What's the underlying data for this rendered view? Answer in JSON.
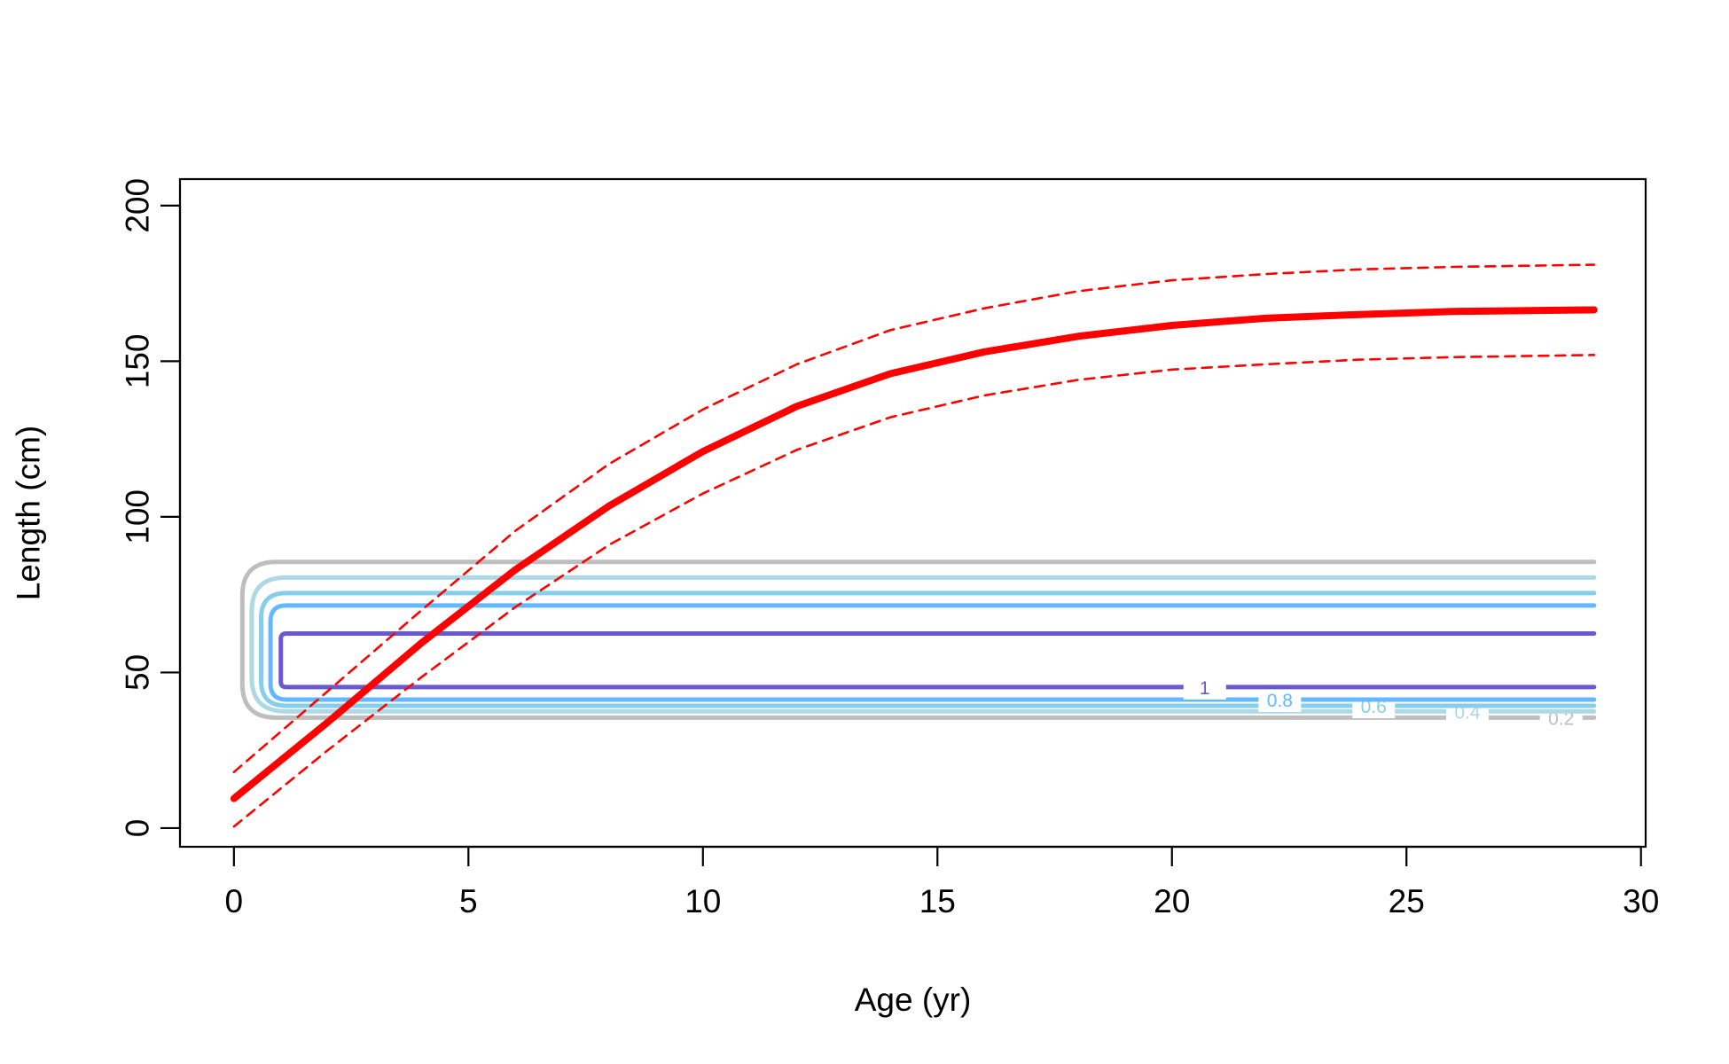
{
  "chart_data": {
    "type": "line",
    "title": "",
    "xlabel": "Age (yr)",
    "ylabel": "Length (cm)",
    "xlim": [
      -1.15,
      30.1
    ],
    "ylim": [
      -6,
      208.5
    ],
    "x_ticks": [
      0,
      5,
      10,
      15,
      20,
      25,
      30
    ],
    "x_tick_labels": [
      "0",
      "5",
      "10",
      "15",
      "20",
      "25",
      "30"
    ],
    "y_ticks": [
      0,
      50,
      100,
      150,
      200
    ],
    "y_tick_labels": [
      "0",
      "50",
      "100",
      "150",
      "200"
    ],
    "grid": false,
    "legend": "none",
    "colors": {
      "mean": "#ff0000",
      "interval": "#ff0000",
      "axis": "#000000"
    },
    "series": [
      {
        "role": "mean",
        "style": "solid-thick",
        "x": [
          0,
          2,
          4,
          6,
          8,
          10,
          12,
          14,
          16,
          18,
          20,
          22,
          24,
          26,
          29
        ],
        "y": [
          9.5,
          34,
          59.5,
          83,
          103.5,
          121,
          135.5,
          146,
          153,
          158,
          161.5,
          163.8,
          165,
          166,
          166.5
        ]
      },
      {
        "role": "upper",
        "style": "dashed",
        "x": [
          0,
          2,
          4,
          6,
          8,
          10,
          12,
          14,
          16,
          18,
          20,
          22,
          24,
          26,
          29
        ],
        "y": [
          18,
          44,
          70,
          95.5,
          117,
          134.5,
          149,
          160,
          167,
          172.5,
          176,
          178,
          179.5,
          180.3,
          181
        ]
      },
      {
        "role": "lower",
        "style": "dashed",
        "x": [
          0,
          2,
          4,
          6,
          8,
          10,
          12,
          14,
          16,
          18,
          20,
          22,
          24,
          26,
          29
        ],
        "y": [
          0.5,
          25,
          48.5,
          71,
          91,
          107.5,
          121.5,
          132,
          139,
          144,
          147.3,
          149,
          150.5,
          151.3,
          152
        ]
      }
    ],
    "contours": [
      {
        "level": 0.2,
        "label": "0.2",
        "color": "#bebebe",
        "x_left": 0.18,
        "x_right": 29,
        "y_top": 85.5,
        "y_bottom": 35.5,
        "label_x": 28.3
      },
      {
        "level": 0.4,
        "label": "0.4",
        "color": "#add8e6",
        "x_left": 0.38,
        "x_right": 29,
        "y_top": 80.5,
        "y_bottom": 37.5,
        "label_x": 26.3
      },
      {
        "level": 0.6,
        "label": "0.6",
        "color": "#87ceeb",
        "x_left": 0.58,
        "x_right": 29,
        "y_top": 75.5,
        "y_bottom": 39.3,
        "label_x": 24.3
      },
      {
        "level": 0.8,
        "label": "0.8",
        "color": "#63b8ff",
        "x_left": 0.78,
        "x_right": 29,
        "y_top": 71.5,
        "y_bottom": 41.3,
        "label_x": 22.3
      },
      {
        "level": 1,
        "label": "1",
        "color": "#6a5acd",
        "x_left": 1.0,
        "x_right": 29,
        "y_top": 62.5,
        "y_bottom": 45.3,
        "label_x": 20.7
      }
    ]
  }
}
